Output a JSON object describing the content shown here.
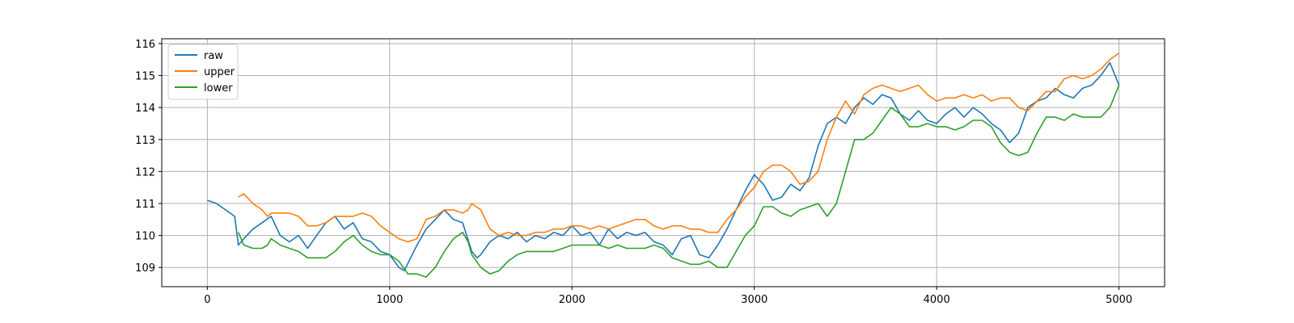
{
  "chart_data": {
    "type": "line",
    "title": "",
    "xlabel": "",
    "ylabel": "",
    "xlim": [
      -250,
      5250
    ],
    "ylim": [
      108.4,
      116.15
    ],
    "xticks": [
      0,
      1000,
      2000,
      3000,
      4000,
      5000
    ],
    "yticks": [
      109,
      110,
      111,
      112,
      113,
      114,
      115,
      116
    ],
    "grid": true,
    "legend_position": "top-left",
    "series": [
      {
        "name": "raw",
        "color": "#1f77b4",
        "x": [
          0,
          50,
          100,
          150,
          170,
          200,
          250,
          300,
          350,
          400,
          450,
          500,
          550,
          600,
          650,
          700,
          750,
          800,
          850,
          900,
          950,
          1000,
          1050,
          1080,
          1150,
          1200,
          1250,
          1300,
          1350,
          1400,
          1450,
          1480,
          1500,
          1550,
          1600,
          1650,
          1700,
          1750,
          1800,
          1850,
          1900,
          1950,
          2000,
          2050,
          2100,
          2150,
          2200,
          2250,
          2300,
          2350,
          2400,
          2450,
          2500,
          2550,
          2600,
          2650,
          2700,
          2750,
          2800,
          2850,
          2900,
          2950,
          3000,
          3050,
          3100,
          3150,
          3200,
          3250,
          3300,
          3350,
          3400,
          3450,
          3500,
          3550,
          3600,
          3650,
          3700,
          3750,
          3800,
          3850,
          3900,
          3950,
          4000,
          4050,
          4100,
          4150,
          4200,
          4250,
          4300,
          4350,
          4400,
          4450,
          4500,
          4550,
          4600,
          4650,
          4700,
          4750,
          4800,
          4850,
          4900,
          4950,
          5000
        ],
        "values": [
          111.1,
          111.0,
          110.8,
          110.6,
          109.7,
          109.9,
          110.2,
          110.4,
          110.6,
          110.0,
          109.8,
          110.0,
          109.6,
          110.0,
          110.4,
          110.6,
          110.2,
          110.4,
          109.9,
          109.8,
          109.5,
          109.4,
          109.0,
          108.9,
          109.7,
          110.2,
          110.5,
          110.8,
          110.5,
          110.4,
          109.5,
          109.3,
          109.4,
          109.8,
          110.0,
          109.9,
          110.1,
          109.8,
          110.0,
          109.9,
          110.1,
          110.0,
          110.3,
          110.0,
          110.1,
          109.7,
          110.2,
          109.9,
          110.1,
          110.0,
          110.1,
          109.8,
          109.7,
          109.4,
          109.9,
          110.0,
          109.4,
          109.3,
          109.7,
          110.2,
          110.8,
          111.4,
          111.9,
          111.6,
          111.1,
          111.2,
          111.6,
          111.4,
          111.8,
          112.8,
          113.5,
          113.7,
          113.5,
          114.0,
          114.3,
          114.1,
          114.4,
          114.3,
          113.8,
          113.6,
          113.9,
          113.6,
          113.5,
          113.8,
          114.0,
          113.7,
          114.0,
          113.8,
          113.5,
          113.3,
          112.9,
          113.2,
          114.0,
          114.2,
          114.3,
          114.6,
          114.4,
          114.3,
          114.6,
          114.7,
          115.0,
          115.4,
          114.7
        ]
      },
      {
        "name": "upper",
        "color": "#ff7f0e",
        "x": [
          170,
          200,
          250,
          300,
          330,
          350,
          400,
          450,
          500,
          550,
          600,
          650,
          700,
          750,
          800,
          850,
          900,
          950,
          1000,
          1050,
          1100,
          1150,
          1200,
          1250,
          1300,
          1350,
          1400,
          1430,
          1450,
          1500,
          1550,
          1600,
          1650,
          1700,
          1750,
          1800,
          1850,
          1900,
          1950,
          2000,
          2050,
          2100,
          2150,
          2200,
          2250,
          2300,
          2350,
          2400,
          2450,
          2500,
          2550,
          2600,
          2650,
          2700,
          2750,
          2800,
          2850,
          2900,
          2950,
          3000,
          3050,
          3100,
          3150,
          3200,
          3250,
          3300,
          3350,
          3400,
          3450,
          3500,
          3550,
          3600,
          3650,
          3700,
          3750,
          3800,
          3850,
          3900,
          3950,
          4000,
          4050,
          4100,
          4150,
          4200,
          4250,
          4300,
          4350,
          4400,
          4450,
          4500,
          4550,
          4600,
          4650,
          4700,
          4750,
          4800,
          4850,
          4900,
          4950,
          5000
        ],
        "values": [
          111.2,
          111.3,
          111.0,
          110.8,
          110.6,
          110.7,
          110.7,
          110.7,
          110.6,
          110.3,
          110.3,
          110.4,
          110.6,
          110.6,
          110.6,
          110.7,
          110.6,
          110.3,
          110.1,
          109.9,
          109.8,
          109.9,
          110.5,
          110.6,
          110.8,
          110.8,
          110.7,
          110.8,
          111.0,
          110.8,
          110.2,
          110.0,
          110.1,
          110.0,
          110.0,
          110.1,
          110.1,
          110.2,
          110.2,
          110.3,
          110.3,
          110.2,
          110.3,
          110.2,
          110.3,
          110.4,
          110.5,
          110.5,
          110.3,
          110.2,
          110.3,
          110.3,
          110.2,
          110.2,
          110.1,
          110.1,
          110.5,
          110.8,
          111.2,
          111.5,
          112.0,
          112.2,
          112.2,
          112.0,
          111.6,
          111.7,
          112.0,
          113.0,
          113.7,
          114.2,
          113.8,
          114.4,
          114.6,
          114.7,
          114.6,
          114.5,
          114.6,
          114.7,
          114.4,
          114.2,
          114.3,
          114.3,
          114.4,
          114.3,
          114.4,
          114.2,
          114.3,
          114.3,
          114.0,
          113.9,
          114.2,
          114.5,
          114.5,
          114.9,
          115.0,
          114.9,
          115.0,
          115.2,
          115.5,
          115.7
        ]
      },
      {
        "name": "lower",
        "color": "#2ca02c",
        "x": [
          170,
          200,
          250,
          300,
          330,
          350,
          400,
          450,
          500,
          550,
          600,
          650,
          700,
          750,
          800,
          850,
          900,
          950,
          1000,
          1050,
          1100,
          1150,
          1200,
          1250,
          1300,
          1350,
          1400,
          1430,
          1450,
          1500,
          1550,
          1600,
          1650,
          1700,
          1750,
          1800,
          1850,
          1900,
          1950,
          2000,
          2050,
          2100,
          2150,
          2200,
          2250,
          2300,
          2350,
          2400,
          2450,
          2500,
          2550,
          2600,
          2650,
          2700,
          2750,
          2800,
          2850,
          2900,
          2950,
          3000,
          3050,
          3100,
          3150,
          3200,
          3250,
          3300,
          3350,
          3400,
          3450,
          3500,
          3550,
          3600,
          3650,
          3700,
          3750,
          3800,
          3850,
          3900,
          3950,
          4000,
          4050,
          4100,
          4150,
          4200,
          4250,
          4300,
          4350,
          4400,
          4450,
          4500,
          4550,
          4600,
          4650,
          4700,
          4750,
          4800,
          4850,
          4900,
          4950,
          5000
        ],
        "values": [
          110.1,
          109.7,
          109.6,
          109.6,
          109.7,
          109.9,
          109.7,
          109.6,
          109.5,
          109.3,
          109.3,
          109.3,
          109.5,
          109.8,
          110.0,
          109.7,
          109.5,
          109.4,
          109.4,
          109.2,
          108.8,
          108.8,
          108.7,
          109.0,
          109.5,
          109.9,
          110.1,
          109.8,
          109.4,
          109.0,
          108.8,
          108.9,
          109.2,
          109.4,
          109.5,
          109.5,
          109.5,
          109.5,
          109.6,
          109.7,
          109.7,
          109.7,
          109.7,
          109.6,
          109.7,
          109.6,
          109.6,
          109.6,
          109.7,
          109.6,
          109.3,
          109.2,
          109.1,
          109.1,
          109.2,
          109.0,
          109.0,
          109.5,
          110.0,
          110.3,
          110.9,
          110.9,
          110.7,
          110.6,
          110.8,
          110.9,
          111.0,
          110.6,
          111.0,
          112.0,
          113.0,
          113.0,
          113.2,
          113.6,
          114.0,
          113.8,
          113.4,
          113.4,
          113.5,
          113.4,
          113.4,
          113.3,
          113.4,
          113.6,
          113.6,
          113.4,
          112.9,
          112.6,
          112.5,
          112.6,
          113.2,
          113.7,
          113.7,
          113.6,
          113.8,
          113.7,
          113.7,
          113.7,
          114.0,
          114.7
        ]
      }
    ]
  }
}
